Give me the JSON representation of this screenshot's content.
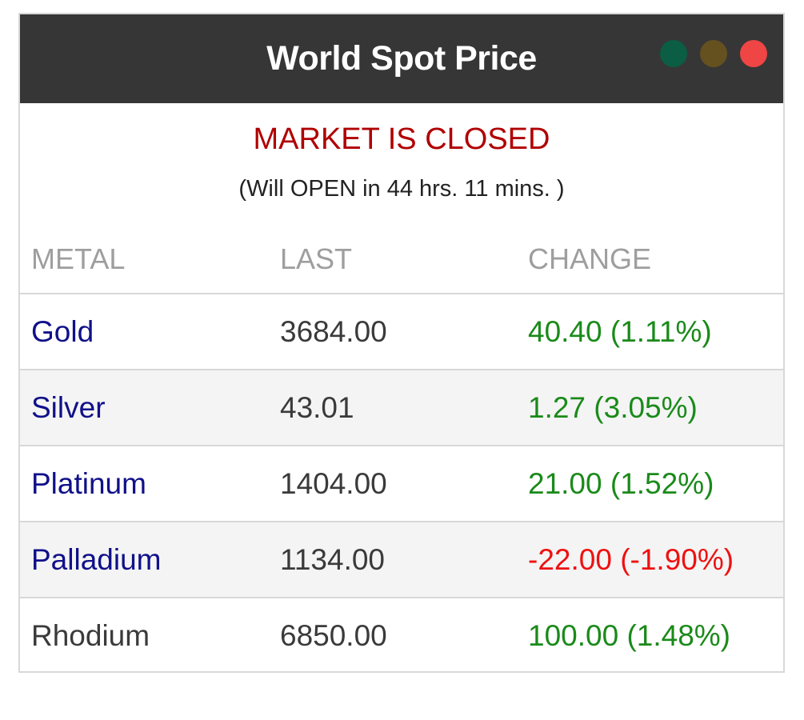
{
  "widget": {
    "title": "World Spot Price",
    "window_dots": [
      {
        "name": "green",
        "color": "#0b5e43"
      },
      {
        "name": "olive",
        "color": "#65511f"
      },
      {
        "name": "red",
        "color": "#ef4545"
      }
    ]
  },
  "market": {
    "status": "MARKET IS CLOSED",
    "reopen": "(Will OPEN in 44 hrs. 11 mins. )"
  },
  "table": {
    "headers": {
      "metal": "METAL",
      "last": "LAST",
      "change": "CHANGE"
    },
    "rows": [
      {
        "metal": "Gold",
        "last": "3684.00",
        "change": "40.40 (1.11%)",
        "metal_color": "#10108a",
        "change_color": "#1a8a1a"
      },
      {
        "metal": "Silver",
        "last": "43.01",
        "change": "1.27 (3.05%)",
        "metal_color": "#10108a",
        "change_color": "#1a8a1a"
      },
      {
        "metal": "Platinum",
        "last": "1404.00",
        "change": "21.00 (1.52%)",
        "metal_color": "#10108a",
        "change_color": "#1a8a1a"
      },
      {
        "metal": "Palladium",
        "last": "1134.00",
        "change": "-22.00 (-1.90%)",
        "metal_color": "#10108a",
        "change_color": "#ee1111"
      },
      {
        "metal": "Rhodium",
        "last": "6850.00",
        "change": "100.00 (1.48%)",
        "metal_color": "#3a3a3a",
        "change_color": "#1a8a1a"
      }
    ]
  }
}
